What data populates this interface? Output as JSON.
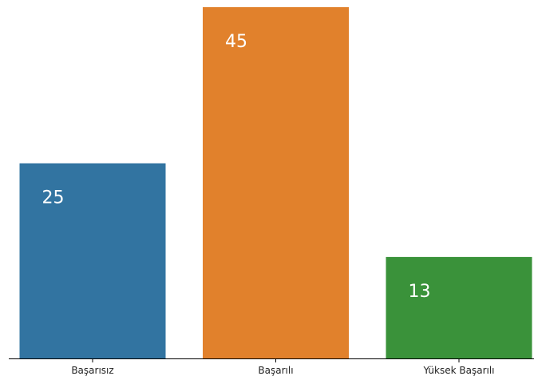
{
  "chart_data": {
    "type": "bar",
    "title": "",
    "xlabel": "",
    "ylabel": "",
    "categories": [
      "Başarısız",
      "Başarılı",
      "Yüksek Başarılı"
    ],
    "values": [
      25,
      45,
      13
    ],
    "colors": [
      "#3274a1",
      "#e1812c",
      "#3a923a"
    ],
    "ylim": [
      0,
      45
    ],
    "grid": false,
    "legend": "none"
  }
}
